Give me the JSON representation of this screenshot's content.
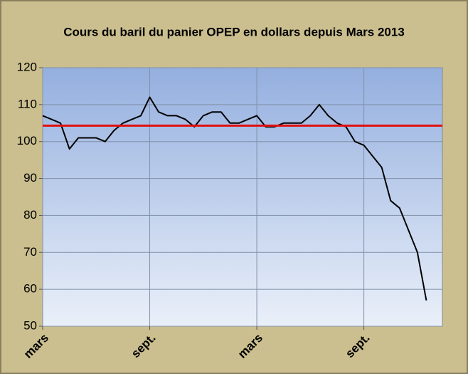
{
  "chart_data": {
    "type": "line",
    "title": "Cours du baril du panier OPEP en dollars depuis Mars 2013",
    "categories": [
      "mars",
      null,
      null,
      null,
      null,
      null,
      null,
      null,
      null,
      null,
      null,
      null,
      "sept.",
      null,
      null,
      null,
      null,
      null,
      null,
      null,
      null,
      null,
      null,
      null,
      "mars",
      null,
      null,
      null,
      null,
      null,
      null,
      null,
      null,
      null,
      null,
      null,
      "sept.",
      null,
      null,
      null,
      null,
      null,
      null,
      null
    ],
    "series": [
      {
        "color": "#000000",
        "values": [
          107,
          106,
          105,
          98,
          101,
          101,
          101,
          100,
          103,
          105,
          106,
          107,
          112,
          108,
          107,
          107,
          106,
          104,
          107,
          108,
          108,
          105,
          105,
          106,
          107,
          104,
          104,
          105,
          105,
          105,
          107,
          110,
          107,
          105,
          104,
          100,
          99,
          96,
          93,
          84,
          82,
          76,
          70,
          57
        ]
      }
    ],
    "reference_line": {
      "value": 104.3,
      "color": "#e01010"
    },
    "ylim": [
      50,
      120
    ],
    "yticks": [
      50,
      60,
      70,
      80,
      90,
      100,
      110,
      120
    ],
    "grid": true
  }
}
